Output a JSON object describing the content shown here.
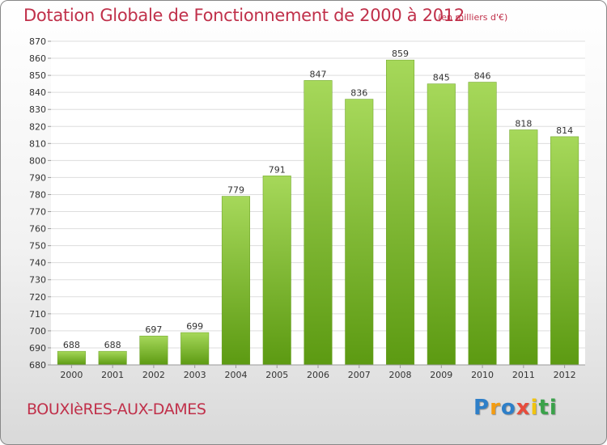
{
  "header": {
    "title": "Dotation Globale de Fonctionnement de 2000 à 2012",
    "units": "(en milliers d'€)"
  },
  "footer": {
    "commune": "BOUXIèRES-AUX-DAMES",
    "logo_text": "Proxiti",
    "logo_letters": [
      "P",
      "r",
      "o",
      "x",
      "i",
      "t",
      "i"
    ],
    "logo_colors": [
      "#2e7fc8",
      "#f39c12",
      "#2e7fc8",
      "#e74c3c",
      "#f1c40f",
      "#3aa24a",
      "#3aa24a"
    ]
  },
  "colors": {
    "bar_top": "#a6d85a",
    "bar_bottom": "#5c9a12",
    "accent": "#c0304a"
  },
  "chart_data": {
    "type": "bar",
    "title": "Dotation Globale de Fonctionnement de 2000 à 2012",
    "xlabel": "",
    "ylabel": "",
    "categories": [
      "2000",
      "2001",
      "2002",
      "2003",
      "2004",
      "2005",
      "2006",
      "2007",
      "2008",
      "2009",
      "2010",
      "2011",
      "2012"
    ],
    "values": [
      688,
      688,
      697,
      699,
      779,
      791,
      847,
      836,
      859,
      845,
      846,
      818,
      814
    ],
    "ylim": [
      680,
      870
    ],
    "ytick_step": 10,
    "grid": true,
    "legend": "none"
  }
}
